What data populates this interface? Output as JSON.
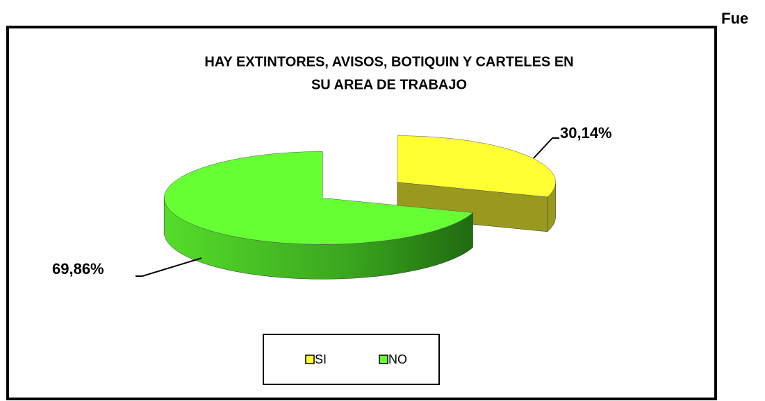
{
  "corner_text": "Fue",
  "chart_data": {
    "type": "pie",
    "title": [
      "HAY EXTINTORES,  AVISOS, BOTIQUIN Y CARTELES  EN",
      "SU AREA DE TRABAJO"
    ],
    "categories": [
      "SI",
      "NO"
    ],
    "values": [
      30.14,
      69.86
    ],
    "value_labels": [
      "30,14%",
      "69,86%"
    ],
    "colors": [
      "#ffff33",
      "#66ff33"
    ],
    "legend": "bottom"
  }
}
